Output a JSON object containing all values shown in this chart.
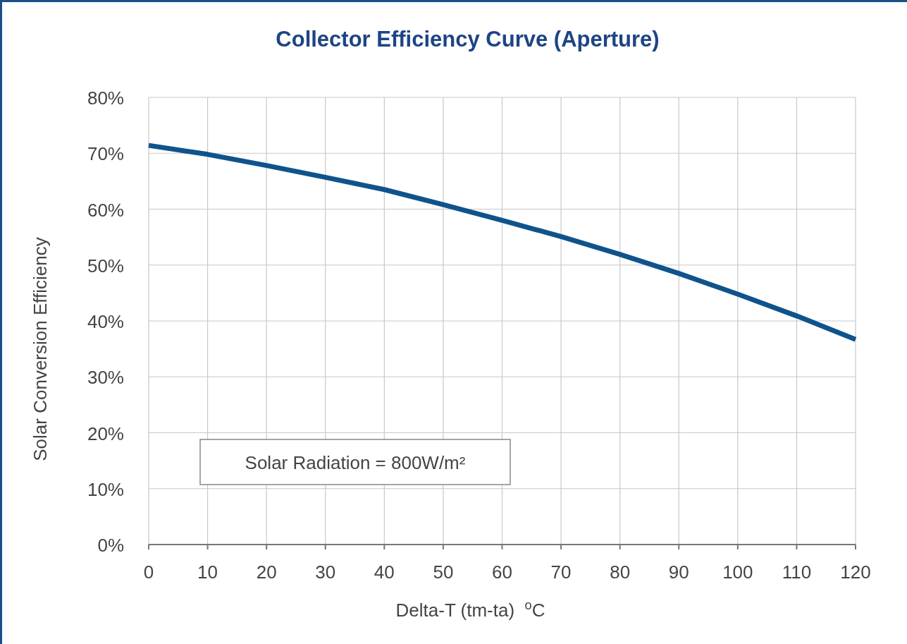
{
  "chart_data": {
    "type": "line",
    "title": "Collector Efficiency Curve (Aperture)",
    "xlabel": "Delta-T (tm-ta)  $^{o}$C",
    "ylabel": "Solar Conversion Efficiency",
    "x": [
      0,
      10,
      20,
      30,
      40,
      50,
      60,
      70,
      80,
      90,
      100,
      110,
      120
    ],
    "series": [
      {
        "color": "#0f538c",
        "values": [
          71.4,
          69.8,
          67.8,
          65.7,
          63.5,
          60.8,
          58.0,
          55.1,
          51.9,
          48.5,
          44.8,
          40.9,
          36.7
        ]
      }
    ],
    "xlim": [
      0,
      120
    ],
    "xticks": [
      0,
      10,
      20,
      30,
      40,
      50,
      60,
      70,
      80,
      90,
      100,
      110,
      120
    ],
    "ylim": [
      0,
      80
    ],
    "yticks": [
      {
        "value": 0,
        "label": "0%"
      },
      {
        "value": 10,
        "label": "10%"
      },
      {
        "value": 20,
        "label": "20%"
      },
      {
        "value": 30,
        "label": "30%"
      },
      {
        "value": 40,
        "label": "40%"
      },
      {
        "value": 50,
        "label": "50%"
      },
      {
        "value": 60,
        "label": "60%"
      },
      {
        "value": 70,
        "label": "70%"
      },
      {
        "value": 80,
        "label": "80%"
      }
    ],
    "grid": true,
    "marker": "none",
    "line_style": "solid",
    "annotations": [
      "Solar Radiation = 800W/m²"
    ]
  }
}
